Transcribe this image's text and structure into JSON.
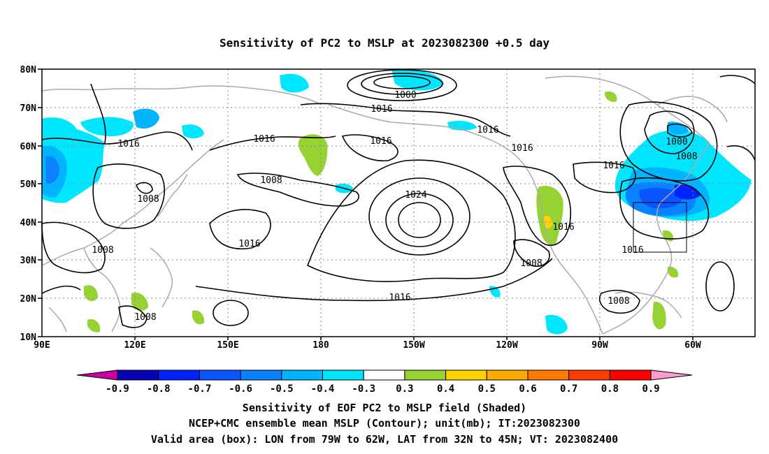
{
  "title": "Sensitivity of PC2 to MSLP at 2023082300 +0.5 day",
  "lat_labels": [
    "80N",
    "70N",
    "60N",
    "50N",
    "40N",
    "30N",
    "20N",
    "10N"
  ],
  "lon_labels": [
    "90E",
    "120E",
    "150E",
    "180",
    "150W",
    "120W",
    "90W",
    "60W"
  ],
  "contour_labels": [
    "1000",
    "1016",
    "1016",
    "1016",
    "1016",
    "1016",
    "1016",
    "1000",
    "1008",
    "1016",
    "1008",
    "1008",
    "1024",
    "1016",
    "1016",
    "1008",
    "1016",
    "1008",
    "1016",
    "1008",
    "1008"
  ],
  "colorbar": {
    "labels": [
      "-0.9",
      "-0.8",
      "-0.7",
      "-0.6",
      "-0.5",
      "-0.4",
      "-0.3",
      "0.3",
      "0.4",
      "0.5",
      "0.6",
      "0.7",
      "0.8",
      "0.9"
    ],
    "colors": [
      "#0a00b4",
      "#0022ff",
      "#0a55ff",
      "#0a82ff",
      "#00b4ff",
      "#00e6ff",
      "#ffffff",
      "#96d232",
      "#ffd200",
      "#ffaa00",
      "#ff7800",
      "#ff3c00",
      "#ff0000"
    ],
    "low_end_color": "#c800a0",
    "high_end_color": "#ff9ccc"
  },
  "caption": {
    "line1": "Sensitivity of EOF PC2 to MSLP field (Shaded)",
    "line2": "NCEP+CMC ensemble mean MSLP (Contour); unit(mb); IT:2023082300",
    "line3": "Valid area (box): LON from 79W to 62W, LAT from 32N to 45N; VT: 2023082400"
  }
}
